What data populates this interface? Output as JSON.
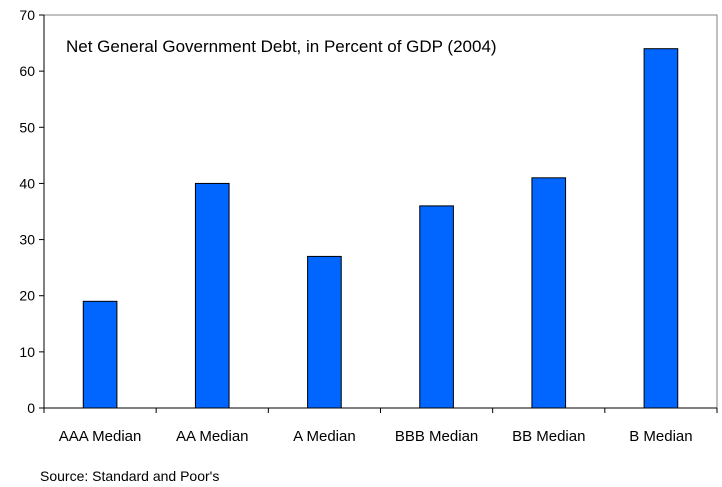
{
  "chart_data": {
    "type": "bar",
    "title": "Net General Government Debt, in Percent of GDP (2004)",
    "categories": [
      "AAA Median",
      "AA Median",
      "A Median",
      "BBB Median",
      "BB Median",
      "B Median"
    ],
    "values": [
      19,
      40,
      27,
      36,
      41,
      64
    ],
    "ylim": [
      0,
      70
    ],
    "yticks": [
      0,
      10,
      20,
      30,
      40,
      50,
      60,
      70
    ],
    "xlabel": "",
    "ylabel": "",
    "grid": false,
    "bar_color": "#0066ff",
    "bar_stroke": "#000000"
  },
  "source_note": "Source: Standard and Poor's"
}
